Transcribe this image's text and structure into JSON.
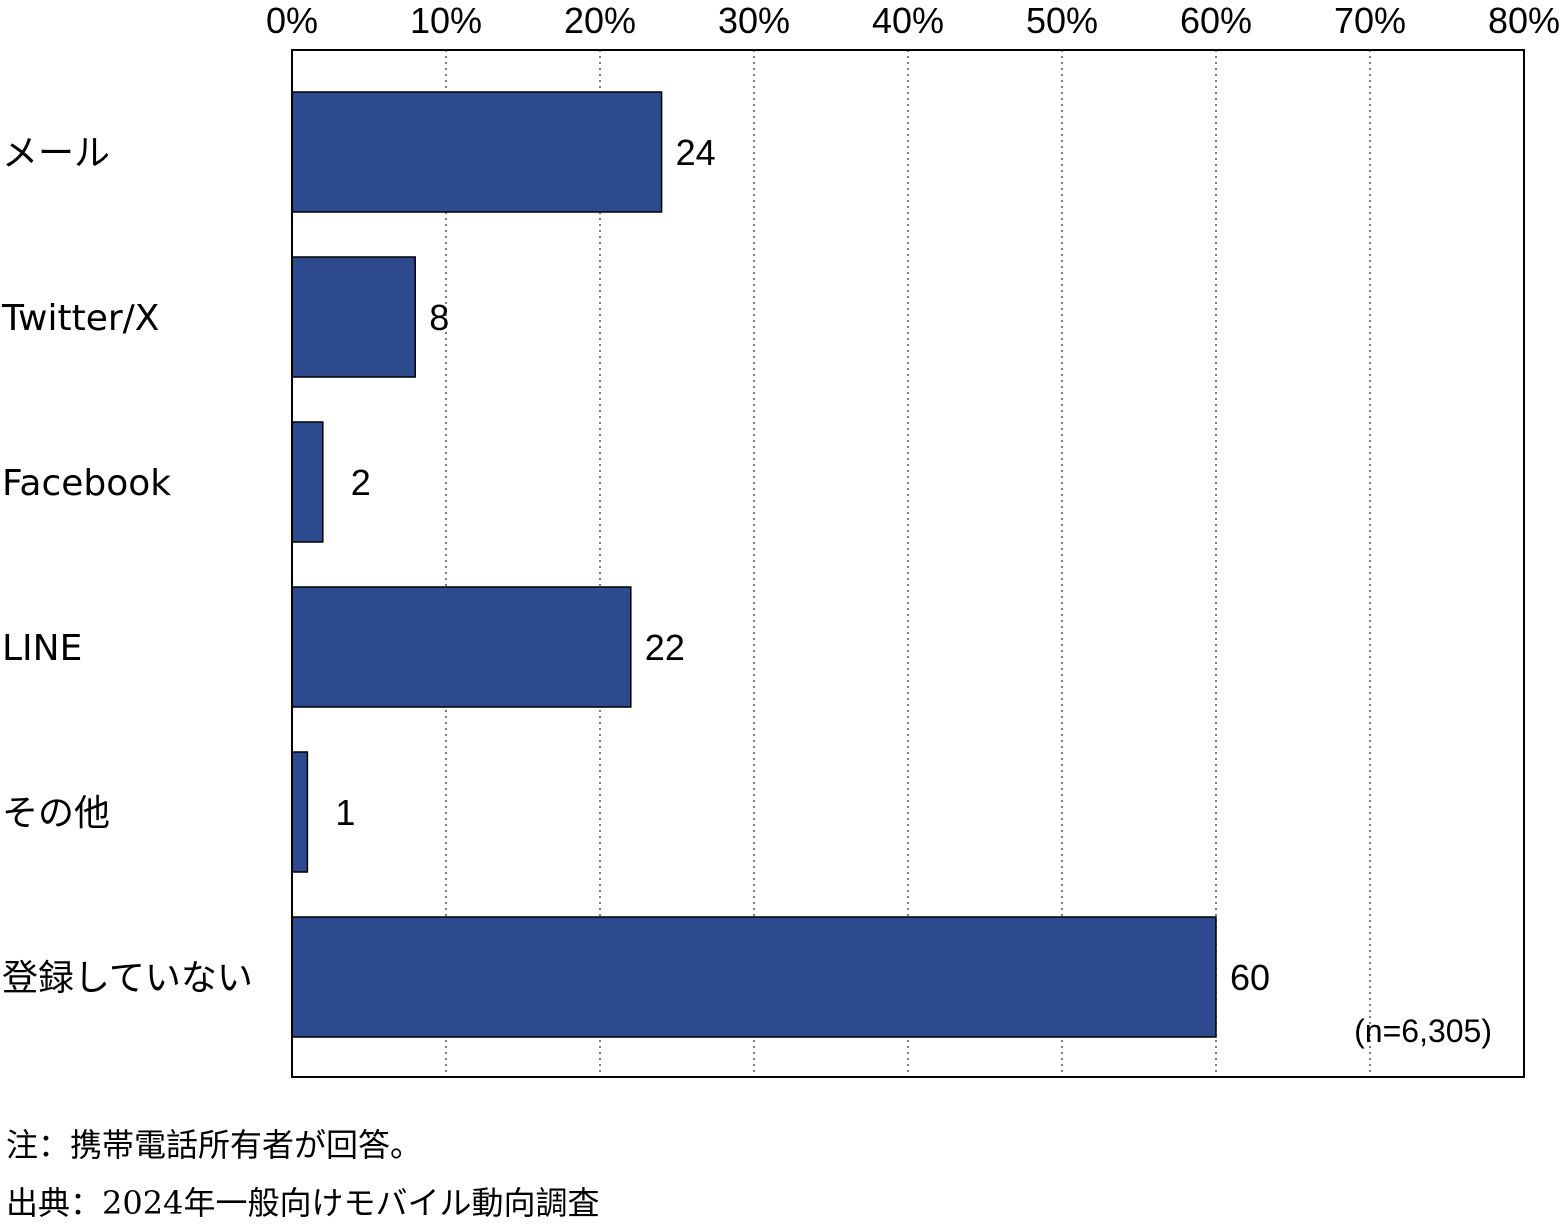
{
  "chart_data": {
    "type": "bar",
    "orientation": "horizontal",
    "categories": [
      "メール",
      "Twitter/X",
      "Facebook",
      "LINE",
      "その他",
      "登録していない"
    ],
    "values": [
      24,
      8,
      2,
      22,
      1,
      60
    ],
    "xlim": [
      0,
      80
    ],
    "xticks": [
      "0%",
      "10%",
      "20%",
      "30%",
      "40%",
      "50%",
      "60%",
      "70%",
      "80%"
    ],
    "grid": true,
    "sample_label": "(n=6,305)",
    "bar_color": "#2e4a8e"
  },
  "notes": {
    "note": "注：携帯電話所有者が回答。",
    "source": "出典：2024年一般向けモバイル動向調査"
  }
}
